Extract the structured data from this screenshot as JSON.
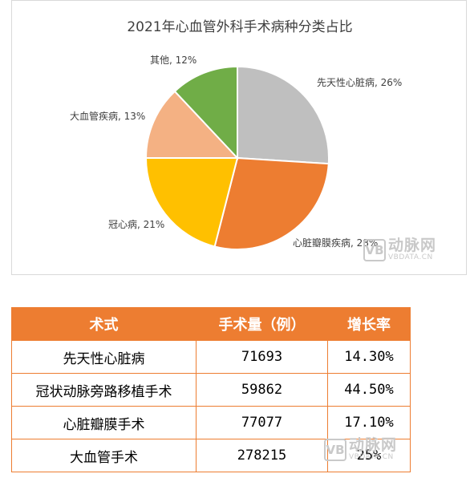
{
  "chart_data": {
    "type": "pie",
    "title": "2021年心血管外科手术病种分类占比",
    "categories": [
      "先天性心脏病",
      "心脏瓣膜疾病",
      "冠心病",
      "大血管疾病",
      "其他"
    ],
    "values": [
      26,
      28,
      21,
      13,
      12
    ],
    "data_labels": [
      "先天性心脏病, 26%",
      "心脏瓣膜疾病, 28%",
      "冠心病, 21%",
      "大血管疾病, 13%",
      "其他, 12%"
    ],
    "colors": [
      "#bfbfbf",
      "#ed7d31",
      "#ffc000",
      "#f4b183",
      "#70ad47"
    ],
    "legend": "none"
  },
  "watermark": {
    "badge": "VB",
    "name": "动脉网",
    "domain": "VBDATA.CN"
  },
  "table": {
    "headers": [
      "术式",
      "手术量（例）",
      "增长率"
    ],
    "rows": [
      [
        "先天性心脏病",
        "71693",
        "14.30%"
      ],
      [
        "冠状动脉旁路移植手术",
        "59862",
        "44.50%"
      ],
      [
        "心脏瓣膜手术",
        "77077",
        "17.10%"
      ],
      [
        "大血管手术",
        "278215",
        "25%"
      ]
    ],
    "header_color": "#ed7d31"
  }
}
